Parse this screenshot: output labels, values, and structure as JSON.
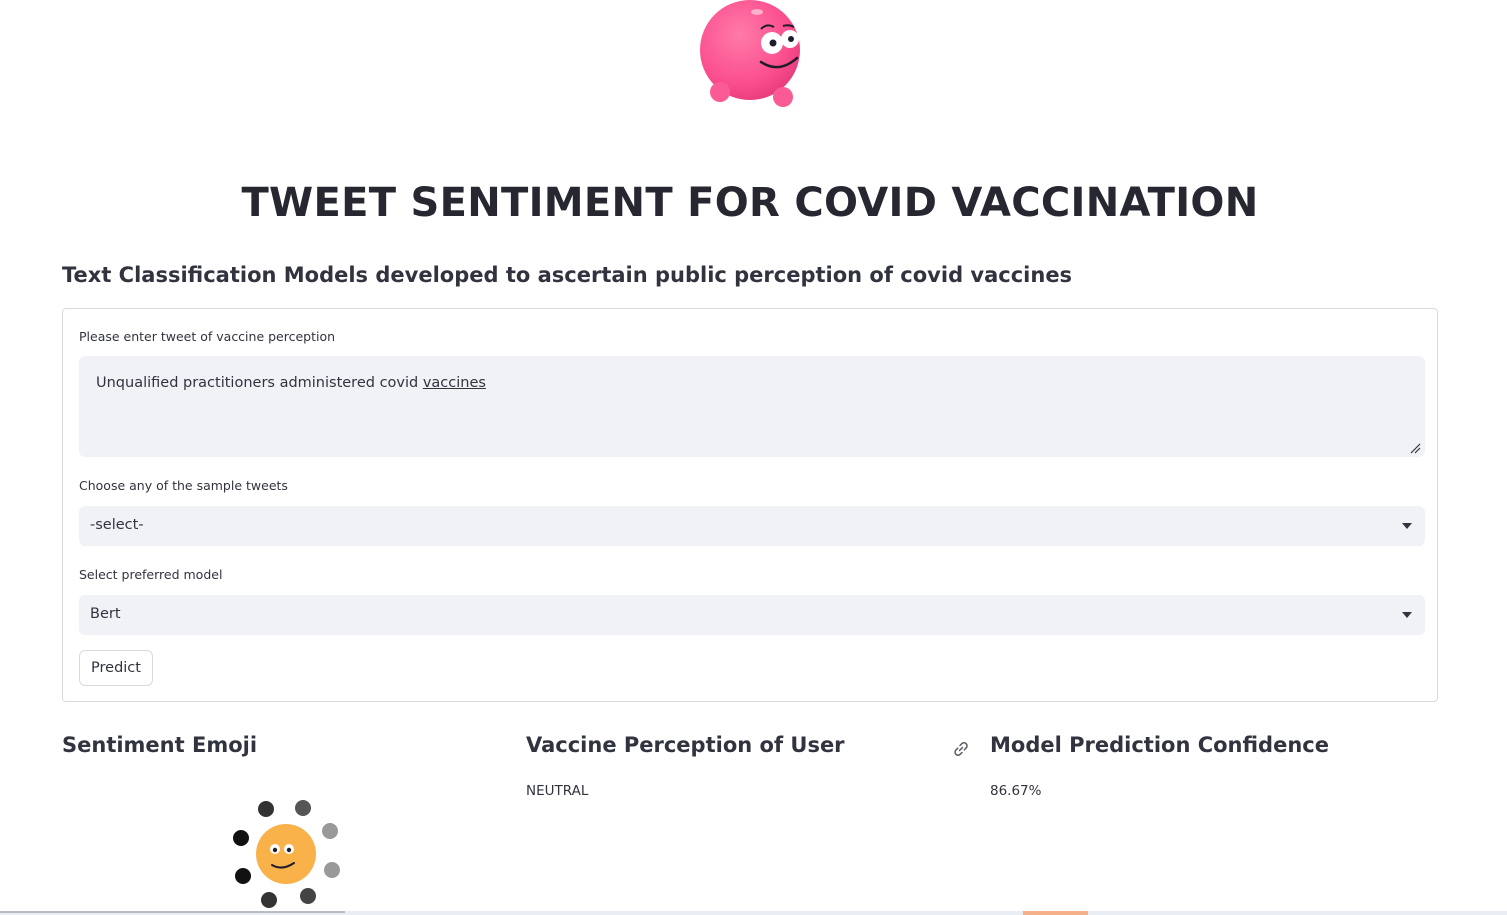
{
  "header": {
    "title": "TWEET SENTIMENT FOR COVID VACCINATION",
    "subtitle": "Text Classification Models developed to ascertain public perception of covid vaccines"
  },
  "form": {
    "tweet_label": "Please enter tweet of vaccine perception",
    "tweet_value_prefix": "Unqualified practitioners administered covid ",
    "tweet_value_flagged_word": "vaccines",
    "sample_label": "Choose any of the sample tweets",
    "sample_selected": "-select-",
    "model_label": "Select preferred model",
    "model_selected": "Bert",
    "predict_label": "Predict"
  },
  "results": {
    "emoji_heading": "Sentiment Emoji",
    "perception_heading": "Vaccine Perception of User",
    "perception_value": "NEUTRAL",
    "confidence_heading": "Model Prediction Confidence",
    "confidence_value": "86.67%"
  },
  "colors": {
    "logo_pink": "#fb4e8e",
    "emoji_face": "#f9b24a",
    "input_bg": "#f0f2f6",
    "border": "#d9dadf"
  },
  "icons": {
    "logo": "pink-blob-mascot-icon",
    "link": "link-icon",
    "emoji": "neutral-face-spinner-icon"
  }
}
